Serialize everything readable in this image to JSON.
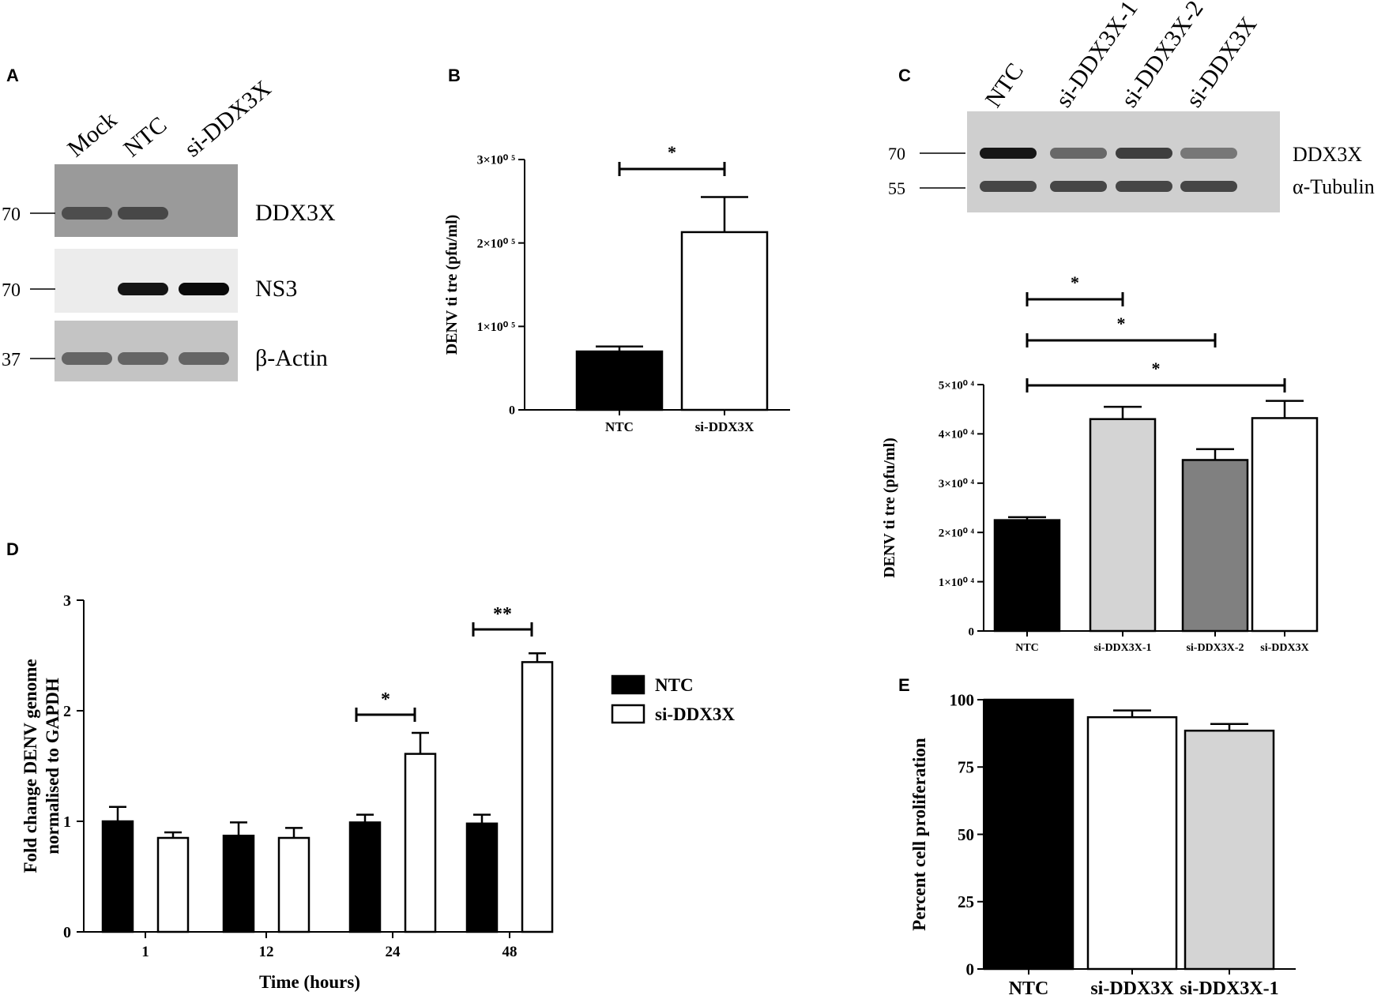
{
  "panel_letters": [
    "A",
    "B",
    "C",
    "D",
    "E"
  ],
  "blot_a": {
    "lanes": [
      "Mock",
      "NTC",
      "si-DDX3X"
    ],
    "rows": [
      {
        "label": "DDX3X",
        "marker": "70",
        "intensity": [
          0.55,
          0.6,
          0.0
        ]
      },
      {
        "label": "NS3",
        "marker": "70",
        "intensity": [
          0.0,
          0.95,
          1.0
        ]
      },
      {
        "label": "β-Actin",
        "marker": "37",
        "intensity": [
          0.45,
          0.45,
          0.45
        ]
      }
    ]
  },
  "blot_c": {
    "lanes": [
      "NTC",
      "si-DDX3X-1",
      "si-DDX3X-2",
      "si-DDX3X"
    ],
    "markers": [
      "70",
      "55"
    ],
    "rows": [
      {
        "label": "DDX3X",
        "intensity": [
          0.95,
          0.5,
          0.75,
          0.4
        ]
      },
      {
        "label": "α-Tubulin",
        "intensity": [
          0.7,
          0.7,
          0.7,
          0.7
        ]
      }
    ]
  },
  "chart_data": [
    {
      "panel": "B",
      "type": "bar",
      "categories": [
        "NTC",
        "si-DDX3X"
      ],
      "values": [
        70000,
        213000
      ],
      "errors": [
        6000,
        42000
      ],
      "fills": [
        "#000000",
        "#ffffff"
      ],
      "ylabel": "DENV ti tre (pfu/ml)",
      "ylim": [
        0,
        300000
      ],
      "yticks": [
        0,
        100000,
        200000,
        300000
      ],
      "ytick_labels": [
        "0",
        "1×10⁰ ⁵",
        "2×10⁰ ⁵",
        "3×10⁰ ⁵"
      ],
      "significance": [
        {
          "from": 0,
          "to": 1,
          "label": "*"
        }
      ]
    },
    {
      "panel": "C",
      "type": "bar",
      "categories": [
        "NTC",
        "si-DDX3X-1",
        "si-DDX3X-2",
        "si-DDX3X"
      ],
      "values": [
        22500,
        43000,
        34700,
        43200
      ],
      "errors": [
        600,
        2500,
        2200,
        3500
      ],
      "fills": [
        "#000000",
        "#d4d4d4",
        "#808080",
        "#ffffff"
      ],
      "ylabel": "DENV ti tre (pfu/ml)",
      "ylim": [
        0,
        50000
      ],
      "yticks": [
        0,
        10000,
        20000,
        30000,
        40000,
        50000
      ],
      "ytick_labels": [
        "0",
        "1×10⁰ ⁴",
        "2×10⁰ ⁴",
        "3×10⁰ ⁴",
        "4×10⁰ ⁴",
        "5×10⁰ ⁴"
      ],
      "significance": [
        {
          "from": 0,
          "to": 1,
          "label": "*"
        },
        {
          "from": 0,
          "to": 2,
          "label": "*"
        },
        {
          "from": 0,
          "to": 3,
          "label": "*"
        }
      ]
    },
    {
      "panel": "D",
      "type": "bar",
      "categories": [
        "1",
        "12",
        "24",
        "48"
      ],
      "series": [
        {
          "name": "NTC",
          "values": [
            1.0,
            0.87,
            0.99,
            0.98
          ],
          "errors": [
            0.13,
            0.12,
            0.07,
            0.08
          ],
          "fill": "#000000"
        },
        {
          "name": "si-DDX3X",
          "values": [
            0.85,
            0.85,
            1.61,
            2.44
          ],
          "errors": [
            0.05,
            0.09,
            0.19,
            0.08
          ],
          "fill": "#ffffff"
        }
      ],
      "xlabel": "Time (hours)",
      "ylabel": [
        "Fold change DENV genome",
        "normalised to GAPDH"
      ],
      "ylim": [
        0,
        3
      ],
      "yticks": [
        0,
        1,
        2,
        3
      ],
      "ytick_labels": [
        "0",
        "1",
        "2",
        "3"
      ],
      "legend": "right",
      "significance": [
        {
          "category": 2,
          "label": "*"
        },
        {
          "category": 3,
          "label": "**"
        }
      ]
    },
    {
      "panel": "E",
      "type": "bar",
      "categories": [
        "NTC",
        "si-DDX3X",
        "si-DDX3X-1"
      ],
      "values": [
        100,
        93.5,
        88.5
      ],
      "errors": [
        0,
        2.5,
        2.5
      ],
      "fills": [
        "#000000",
        "#ffffff",
        "#d4d4d4"
      ],
      "ylabel": "Percent cell proliferation",
      "ylim": [
        0,
        100
      ],
      "yticks": [
        0,
        25,
        50,
        75,
        100
      ],
      "ytick_labels": [
        "0",
        "25",
        "50",
        "75",
        "100"
      ]
    }
  ]
}
